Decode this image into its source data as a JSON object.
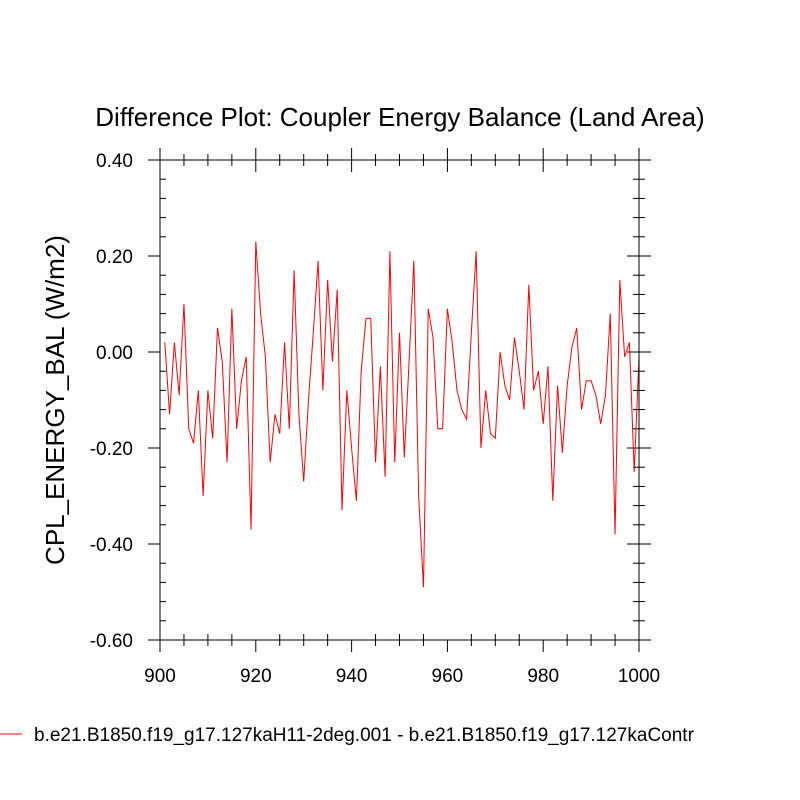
{
  "chart_data": {
    "type": "line",
    "title": "Difference Plot: Coupler Energy Balance (Land Area)",
    "xlabel": "",
    "ylabel": "CPL_ENERGY_BAL  (W/m2)",
    "xlim": [
      900,
      1000
    ],
    "ylim": [
      -0.6,
      0.4
    ],
    "x_ticks": [
      900,
      920,
      940,
      960,
      980,
      1000
    ],
    "x_tick_labels": [
      "900",
      "920",
      "940",
      "960",
      "980",
      "1000"
    ],
    "y_ticks": [
      -0.6,
      -0.4,
      -0.2,
      0.0,
      0.2,
      0.4
    ],
    "y_tick_labels": [
      "-0.60",
      "-0.40",
      "-0.20",
      "0.00",
      "0.20",
      "0.40"
    ],
    "grid": false,
    "legend_position": "bottom-left",
    "series": [
      {
        "name": "b.e21.B1850.f19_g17.127kaH11-2deg.001 - b.e21.B1850.f19_g17.127kaContr",
        "color": "#ff0000",
        "x": [
          901,
          902,
          903,
          904,
          905,
          906,
          907,
          908,
          909,
          910,
          911,
          912,
          913,
          914,
          915,
          916,
          917,
          918,
          919,
          920,
          921,
          922,
          923,
          924,
          925,
          926,
          927,
          928,
          929,
          930,
          931,
          932,
          933,
          934,
          935,
          936,
          937,
          938,
          939,
          940,
          941,
          942,
          943,
          944,
          945,
          946,
          947,
          948,
          949,
          950,
          951,
          952,
          953,
          954,
          955,
          956,
          957,
          958,
          959,
          960,
          961,
          962,
          963,
          964,
          965,
          966,
          967,
          968,
          969,
          970,
          971,
          972,
          973,
          974,
          975,
          976,
          977,
          978,
          979,
          980,
          981,
          982,
          983,
          984,
          985,
          986,
          987,
          988,
          989,
          990,
          991,
          992,
          993,
          994,
          995,
          996,
          997,
          998,
          999,
          1000
        ],
        "values": [
          0.02,
          -0.13,
          0.02,
          -0.09,
          0.1,
          -0.16,
          -0.19,
          -0.08,
          -0.3,
          -0.08,
          -0.18,
          0.05,
          -0.02,
          -0.23,
          0.09,
          -0.16,
          -0.06,
          -0.01,
          -0.37,
          0.23,
          0.08,
          -0.01,
          -0.23,
          -0.13,
          -0.17,
          0.02,
          -0.16,
          0.17,
          -0.13,
          -0.27,
          -0.1,
          0.04,
          0.19,
          -0.08,
          0.15,
          -0.02,
          0.13,
          -0.33,
          -0.08,
          -0.2,
          -0.31,
          -0.04,
          0.07,
          0.07,
          -0.23,
          -0.03,
          -0.26,
          0.21,
          -0.23,
          0.04,
          -0.22,
          -0.02,
          0.19,
          -0.3,
          -0.49,
          0.09,
          0.03,
          -0.16,
          -0.16,
          0.09,
          0.02,
          -0.08,
          -0.12,
          -0.14,
          0.04,
          0.21,
          -0.2,
          -0.08,
          -0.17,
          -0.18,
          0.0,
          -0.07,
          -0.1,
          0.03,
          -0.04,
          -0.12,
          0.14,
          -0.08,
          -0.04,
          -0.15,
          -0.03,
          -0.31,
          -0.07,
          -0.21,
          -0.07,
          0.01,
          0.05,
          -0.12,
          -0.06,
          -0.06,
          -0.09,
          -0.15,
          -0.09,
          0.08,
          -0.38,
          0.15,
          -0.01,
          0.02,
          -0.25,
          -0.01
        ]
      }
    ]
  }
}
